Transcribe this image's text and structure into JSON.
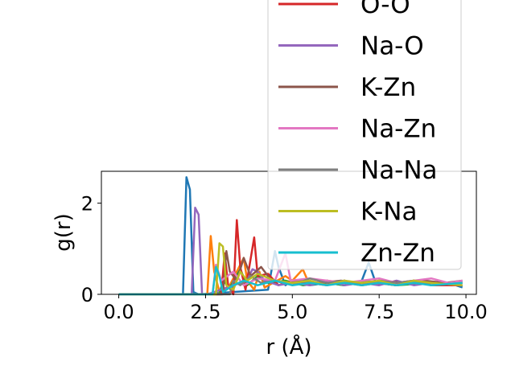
{
  "chart_data": {
    "type": "line",
    "xlabel": "r (Å)",
    "ylabel": "g(r)",
    "xlim": [
      -0.5,
      10.3
    ],
    "ylim": [
      0,
      2.7
    ],
    "xticks": [
      "0.0",
      "2.5",
      "5.0",
      "7.5",
      "10.0"
    ],
    "yticks": [
      "0",
      "2"
    ],
    "grid": false,
    "legend_placement": "top-right",
    "legend_entries": [
      {
        "name": "O-O",
        "color": "#d62728"
      },
      {
        "name": "Na-O",
        "color": "#9467bd"
      },
      {
        "name": "K-Zn",
        "color": "#8c564b"
      },
      {
        "name": "Na-Zn",
        "color": "#e377c2"
      },
      {
        "name": "Na-Na",
        "color": "#7f7f7f"
      },
      {
        "name": "K-Na",
        "color": "#bcbd22"
      },
      {
        "name": "Zn-Zn",
        "color": "#17becf"
      }
    ],
    "series": [
      {
        "color": "#1f77b4",
        "points": [
          [
            0,
            0
          ],
          [
            1.85,
            0
          ],
          [
            1.95,
            2.57
          ],
          [
            2.05,
            2.3
          ],
          [
            2.15,
            0.05
          ],
          [
            2.3,
            0
          ],
          [
            4.3,
            0.1
          ],
          [
            4.5,
            0.95
          ],
          [
            4.6,
            0.6
          ],
          [
            4.8,
            0.2
          ],
          [
            5.0,
            0.3
          ],
          [
            5.5,
            0.2
          ],
          [
            6.0,
            0.25
          ],
          [
            6.5,
            0.2
          ],
          [
            7.0,
            0.3
          ],
          [
            7.2,
            0.7
          ],
          [
            7.4,
            0.25
          ],
          [
            8.0,
            0.2
          ],
          [
            8.5,
            0.3
          ],
          [
            9.0,
            0.2
          ],
          [
            9.5,
            0.25
          ],
          [
            9.9,
            0.15
          ]
        ]
      },
      {
        "color": "#ff7f0e",
        "points": [
          [
            0,
            0
          ],
          [
            2.55,
            0
          ],
          [
            2.65,
            1.28
          ],
          [
            2.75,
            0.5
          ],
          [
            2.9,
            0.05
          ],
          [
            3.2,
            0.2
          ],
          [
            3.6,
            0.8
          ],
          [
            3.7,
            0.3
          ],
          [
            3.9,
            0.1
          ],
          [
            4.05,
            0.5
          ],
          [
            4.2,
            0.15
          ],
          [
            4.8,
            0.4
          ],
          [
            5.0,
            0.3
          ],
          [
            5.3,
            0.55
          ],
          [
            5.5,
            0.2
          ],
          [
            6.0,
            0.3
          ],
          [
            6.5,
            0.25
          ],
          [
            7.0,
            0.2
          ],
          [
            7.5,
            0.3
          ],
          [
            8.0,
            0.25
          ],
          [
            8.5,
            0.3
          ],
          [
            9.0,
            0.2
          ],
          [
            9.9,
            0.25
          ]
        ]
      },
      {
        "color": "#2ca02c",
        "points": [
          [
            0,
            0
          ],
          [
            2.9,
            0
          ],
          [
            3.0,
            0.3
          ],
          [
            3.2,
            0.15
          ],
          [
            3.5,
            0.55
          ],
          [
            3.7,
            0.2
          ],
          [
            4.0,
            0.4
          ],
          [
            4.3,
            0.25
          ],
          [
            4.8,
            0.3
          ],
          [
            5.3,
            0.2
          ],
          [
            6.0,
            0.25
          ],
          [
            6.5,
            0.2
          ],
          [
            7.0,
            0.3
          ],
          [
            8.0,
            0.2
          ],
          [
            9.0,
            0.25
          ],
          [
            9.9,
            0.2
          ]
        ]
      },
      {
        "color": "#d62728",
        "points": [
          [
            0,
            0
          ],
          [
            2.95,
            0
          ],
          [
            3.05,
            0.9
          ],
          [
            3.15,
            0.2
          ],
          [
            3.3,
            0.0
          ],
          [
            3.4,
            1.63
          ],
          [
            3.5,
            0.6
          ],
          [
            3.65,
            0.1
          ],
          [
            3.9,
            1.25
          ],
          [
            4.0,
            0.4
          ],
          [
            4.3,
            0.45
          ],
          [
            4.6,
            0.2
          ],
          [
            5.0,
            0.3
          ],
          [
            5.5,
            0.25
          ],
          [
            6.0,
            0.2
          ],
          [
            6.5,
            0.3
          ],
          [
            7.0,
            0.2
          ],
          [
            7.5,
            0.25
          ],
          [
            8.0,
            0.2
          ],
          [
            8.5,
            0.3
          ],
          [
            9.0,
            0.2
          ],
          [
            9.9,
            0.2
          ]
        ]
      },
      {
        "color": "#9467bd",
        "points": [
          [
            0,
            0
          ],
          [
            2.1,
            0
          ],
          [
            2.2,
            1.9
          ],
          [
            2.3,
            1.75
          ],
          [
            2.4,
            0.0
          ],
          [
            2.55,
            0
          ],
          [
            3.7,
            0.3
          ],
          [
            3.85,
            0.55
          ],
          [
            4.0,
            0.5
          ],
          [
            4.2,
            0.3
          ],
          [
            4.6,
            0.2
          ],
          [
            5.0,
            0.25
          ],
          [
            5.5,
            0.2
          ],
          [
            6.0,
            0.3
          ],
          [
            6.5,
            0.2
          ],
          [
            7.0,
            0.25
          ],
          [
            7.5,
            0.2
          ],
          [
            8.0,
            0.3
          ],
          [
            8.5,
            0.2
          ],
          [
            9.0,
            0.25
          ],
          [
            9.9,
            0.2
          ]
        ]
      },
      {
        "color": "#8c564b",
        "points": [
          [
            0,
            0
          ],
          [
            3.0,
            0
          ],
          [
            3.1,
            0.95
          ],
          [
            3.2,
            0.5
          ],
          [
            3.4,
            0.3
          ],
          [
            3.6,
            0.8
          ],
          [
            3.8,
            0.4
          ],
          [
            4.1,
            0.6
          ],
          [
            4.4,
            0.3
          ],
          [
            4.8,
            0.25
          ],
          [
            5.2,
            0.3
          ],
          [
            5.8,
            0.25
          ],
          [
            6.4,
            0.3
          ],
          [
            7.0,
            0.25
          ],
          [
            7.6,
            0.3
          ],
          [
            8.2,
            0.25
          ],
          [
            8.8,
            0.3
          ],
          [
            9.4,
            0.25
          ],
          [
            9.9,
            0.3
          ]
        ]
      },
      {
        "color": "#e377c2",
        "points": [
          [
            0,
            0
          ],
          [
            2.7,
            0
          ],
          [
            2.8,
            0.65
          ],
          [
            2.95,
            0.3
          ],
          [
            3.3,
            0.5
          ],
          [
            3.6,
            0.2
          ],
          [
            4.0,
            0.35
          ],
          [
            4.5,
            0.3
          ],
          [
            4.8,
            0.9
          ],
          [
            4.95,
            0.3
          ],
          [
            5.5,
            0.35
          ],
          [
            6.0,
            0.3
          ],
          [
            6.5,
            0.25
          ],
          [
            7.0,
            0.3
          ],
          [
            7.5,
            0.35
          ],
          [
            8.0,
            0.25
          ],
          [
            8.5,
            0.3
          ],
          [
            9.0,
            0.35
          ],
          [
            9.5,
            0.25
          ],
          [
            9.9,
            0.3
          ]
        ]
      },
      {
        "color": "#7f7f7f",
        "points": [
          [
            0,
            0
          ],
          [
            3.2,
            0
          ],
          [
            3.3,
            0.3
          ],
          [
            3.5,
            0.2
          ],
          [
            3.8,
            0.4
          ],
          [
            4.1,
            0.25
          ],
          [
            4.5,
            0.3
          ],
          [
            5.0,
            0.2
          ],
          [
            5.5,
            0.35
          ],
          [
            6.0,
            0.25
          ],
          [
            6.5,
            0.3
          ],
          [
            7.0,
            0.2
          ],
          [
            7.5,
            0.3
          ],
          [
            8.0,
            0.25
          ],
          [
            8.5,
            0.3
          ],
          [
            9.0,
            0.2
          ],
          [
            9.9,
            0.25
          ]
        ]
      },
      {
        "color": "#bcbd22",
        "points": [
          [
            0,
            0
          ],
          [
            2.8,
            0
          ],
          [
            2.9,
            1.12
          ],
          [
            3.0,
            1.05
          ],
          [
            3.1,
            0.2
          ],
          [
            3.3,
            0.1
          ],
          [
            3.5,
            0.5
          ],
          [
            3.7,
            0.3
          ],
          [
            4.0,
            0.45
          ],
          [
            4.5,
            0.3
          ],
          [
            5.0,
            0.25
          ],
          [
            5.5,
            0.3
          ],
          [
            6.0,
            0.2
          ],
          [
            6.5,
            0.3
          ],
          [
            7.0,
            0.25
          ],
          [
            7.5,
            0.3
          ],
          [
            8.0,
            0.2
          ],
          [
            8.5,
            0.3
          ],
          [
            9.0,
            0.25
          ],
          [
            9.9,
            0.2
          ]
        ]
      },
      {
        "color": "#17becf",
        "points": [
          [
            0,
            0
          ],
          [
            2.7,
            0
          ],
          [
            2.8,
            0.6
          ],
          [
            2.9,
            0.4
          ],
          [
            3.0,
            0.05
          ],
          [
            3.3,
            0.2
          ],
          [
            3.6,
            0.3
          ],
          [
            4.0,
            0.2
          ],
          [
            4.5,
            0.3
          ],
          [
            5.0,
            0.2
          ],
          [
            5.5,
            0.25
          ],
          [
            6.0,
            0.2
          ],
          [
            6.5,
            0.25
          ],
          [
            7.0,
            0.2
          ],
          [
            7.5,
            0.25
          ],
          [
            8.0,
            0.2
          ],
          [
            8.5,
            0.25
          ],
          [
            9.0,
            0.2
          ],
          [
            9.9,
            0.25
          ]
        ]
      }
    ]
  }
}
